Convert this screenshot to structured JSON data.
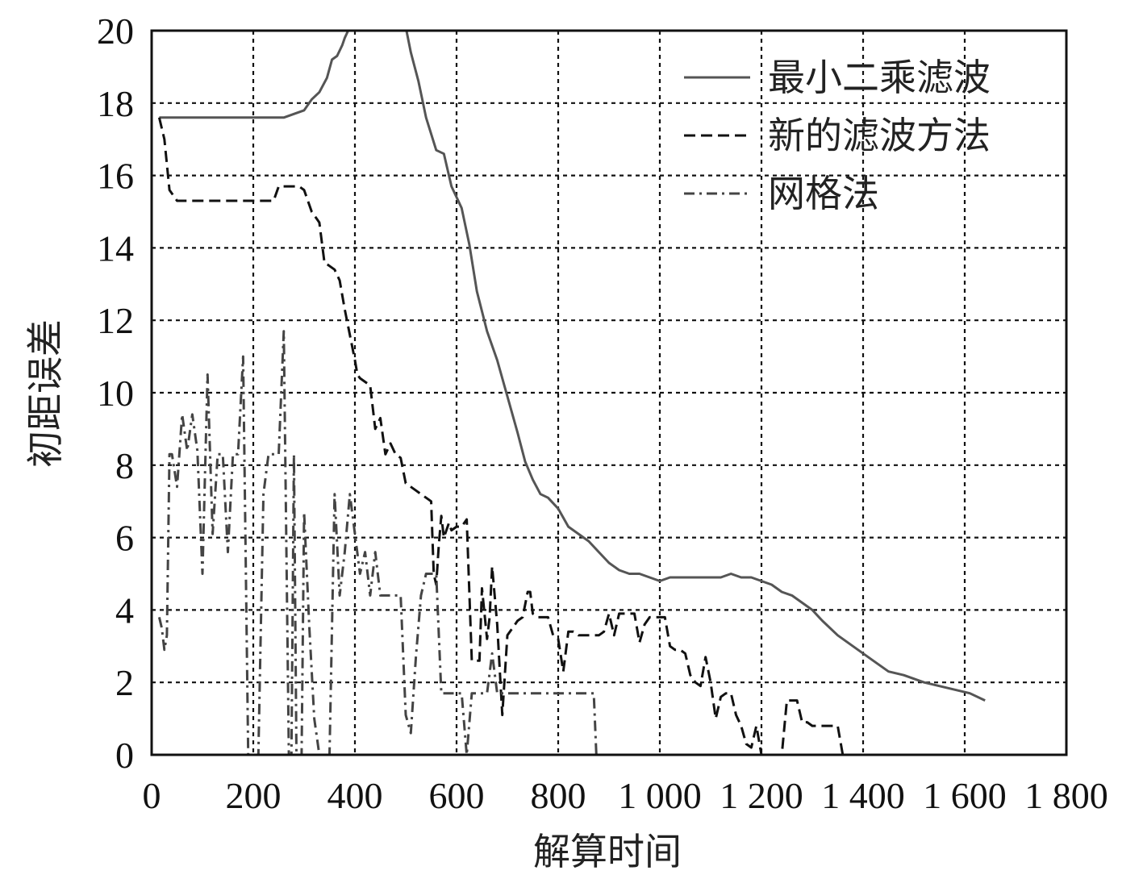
{
  "chart_data": {
    "type": "line",
    "xlabel": "解算时间",
    "ylabel": "初距误差",
    "x_tick_labels": [
      "0",
      "200",
      "400",
      "600",
      "800",
      "1 000",
      "1 200",
      "1 400",
      "1 600",
      "1 800"
    ],
    "x_ticks": [
      0,
      200,
      400,
      600,
      800,
      1000,
      1200,
      1400,
      1600,
      1800
    ],
    "y_ticks": [
      0,
      2,
      4,
      6,
      8,
      10,
      12,
      14,
      16,
      18,
      20
    ],
    "xlim": [
      0,
      1800
    ],
    "ylim": [
      0,
      20
    ],
    "grid": true,
    "legend_position": "top-right",
    "series": [
      {
        "name": "最小二乘滤波",
        "style": "solid",
        "color": "#555555",
        "x": [
          15,
          40,
          80,
          120,
          160,
          200,
          220,
          245,
          260,
          280,
          300,
          315,
          330,
          345,
          355,
          365,
          375,
          380,
          390,
          500,
          510,
          525,
          540,
          560,
          575,
          590,
          600,
          610,
          625,
          640,
          660,
          680,
          700,
          720,
          735,
          750,
          765,
          780,
          800,
          820,
          840,
          860,
          880,
          900,
          920,
          940,
          960,
          980,
          1000,
          1020,
          1050,
          1080,
          1100,
          1120,
          1140,
          1160,
          1180,
          1200,
          1220,
          1240,
          1260,
          1280,
          1300,
          1320,
          1350,
          1380,
          1400,
          1420,
          1450,
          1480,
          1500,
          1520,
          1550,
          1580,
          1610,
          1640
        ],
        "y": [
          17.6,
          17.6,
          17.6,
          17.6,
          17.6,
          17.6,
          17.6,
          17.6,
          17.6,
          17.7,
          17.8,
          18.1,
          18.3,
          18.7,
          19.2,
          19.3,
          19.6,
          19.8,
          20.1,
          20.1,
          19.4,
          18.6,
          17.6,
          16.7,
          16.6,
          15.7,
          15.4,
          15.1,
          14.1,
          12.8,
          11.7,
          10.9,
          9.9,
          8.9,
          8.1,
          7.6,
          7.2,
          7.1,
          6.8,
          6.3,
          6.1,
          5.9,
          5.6,
          5.3,
          5.1,
          5.0,
          5.0,
          4.9,
          4.8,
          4.9,
          4.9,
          4.9,
          4.9,
          4.9,
          5.0,
          4.9,
          4.9,
          4.8,
          4.7,
          4.5,
          4.4,
          4.2,
          4.0,
          3.7,
          3.3,
          3.0,
          2.8,
          2.6,
          2.3,
          2.2,
          2.1,
          2.0,
          1.9,
          1.8,
          1.7,
          1.5
        ]
      },
      {
        "name": "新的滤波方法",
        "style": "dashed",
        "color": "#111111",
        "x": [
          15,
          25,
          35,
          50,
          80,
          120,
          160,
          200,
          230,
          240,
          250,
          270,
          290,
          300,
          315,
          325,
          330,
          340,
          350,
          360,
          370,
          380,
          390,
          400,
          405,
          410,
          420,
          430,
          440,
          450,
          460,
          470,
          480,
          490,
          500,
          510,
          520,
          530,
          540,
          550,
          555,
          560,
          565,
          570,
          575,
          580,
          585,
          590,
          600,
          610,
          620,
          630,
          640,
          645,
          650,
          660,
          665,
          670,
          680,
          690,
          700,
          710,
          715,
          720,
          730,
          740,
          745,
          750,
          760,
          770,
          780,
          790,
          800,
          810,
          820,
          830,
          840,
          860,
          870,
          880,
          890,
          900,
          910,
          920,
          930,
          940,
          950,
          960,
          970,
          980,
          990,
          1000,
          1010,
          1020,
          1030,
          1040,
          1050,
          1060,
          1070,
          1080,
          1090,
          1100,
          1110,
          1120,
          1130,
          1140,
          1150,
          1160,
          1170,
          1180,
          1190,
          1200,
          1210,
          1220,
          1230,
          1240,
          1250,
          1260,
          1270,
          1280,
          1290,
          1300,
          1310,
          1320,
          1330,
          1340,
          1350,
          1360,
          1370,
          1380,
          1400,
          1420,
          1440,
          1450
        ],
        "y": [
          17.6,
          17.0,
          15.6,
          15.3,
          15.3,
          15.3,
          15.3,
          15.3,
          15.3,
          15.3,
          15.7,
          15.7,
          15.7,
          15.6,
          15.0,
          14.8,
          14.7,
          13.6,
          13.5,
          13.4,
          13.1,
          12.3,
          11.6,
          10.9,
          10.5,
          10.4,
          10.3,
          10.2,
          9.0,
          9.3,
          8.3,
          8.6,
          8.3,
          8.2,
          7.5,
          7.4,
          7.3,
          7.2,
          7.1,
          7.0,
          5.0,
          4.7,
          5.8,
          6.6,
          6.0,
          6.2,
          6.4,
          6.2,
          6.3,
          6.3,
          6.5,
          2.6,
          2.6,
          2.6,
          4.6,
          3.2,
          3.8,
          5.2,
          3.6,
          1.1,
          3.3,
          3.5,
          3.6,
          3.7,
          3.8,
          4.5,
          4.5,
          3.9,
          3.8,
          3.8,
          3.8,
          3.3,
          3.2,
          2.3,
          3.4,
          3.4,
          3.3,
          3.3,
          3.3,
          3.3,
          3.4,
          3.9,
          3.3,
          3.9,
          3.9,
          3.9,
          3.9,
          3.1,
          3.6,
          3.8,
          3.8,
          3.8,
          3.8,
          3.0,
          2.9,
          2.9,
          2.8,
          2.2,
          2.0,
          1.9,
          2.7,
          2.0,
          1.0,
          1.6,
          1.7,
          1.7,
          1.1,
          0.8,
          0.3,
          0.2,
          0.8,
          0.0,
          0.0,
          0.0,
          0.0,
          0.0,
          1.5,
          1.5,
          1.5,
          0.9,
          0.9,
          0.8,
          0.8,
          0.8,
          0.8,
          0.8,
          0.8,
          0.0,
          0.0,
          0.0,
          0.0,
          0.0,
          0.0,
          0.0
        ]
      },
      {
        "name": "网格法",
        "style": "dashdot",
        "color": "#444444",
        "x": [
          15,
          20,
          25,
          30,
          35,
          40,
          50,
          60,
          70,
          80,
          90,
          100,
          110,
          120,
          130,
          140,
          150,
          160,
          170,
          180,
          190,
          200,
          210,
          220,
          230,
          240,
          250,
          260,
          270,
          275,
          280,
          285,
          290,
          295,
          300,
          310,
          320,
          330,
          340,
          350,
          360,
          370,
          380,
          390,
          400,
          410,
          420,
          430,
          440,
          450,
          460,
          470,
          480,
          490,
          500,
          510,
          520,
          530,
          540,
          550,
          560,
          570,
          580,
          590,
          600,
          610,
          620,
          630,
          640,
          650,
          660,
          670,
          680,
          690,
          700,
          710,
          720,
          730,
          740,
          750,
          760,
          770,
          780,
          790,
          800,
          810,
          820,
          830,
          840,
          850,
          860,
          870,
          875
        ],
        "y": [
          3.8,
          3.5,
          2.9,
          3.3,
          8.3,
          8.3,
          7.4,
          9.4,
          8.4,
          9.4,
          8.4,
          5.0,
          10.5,
          6.1,
          8.3,
          8.3,
          5.6,
          8.3,
          8.3,
          11.0,
          0.0,
          0.0,
          0.0,
          7.2,
          8.3,
          8.3,
          8.3,
          11.7,
          0.0,
          0.0,
          8.3,
          0.0,
          0.0,
          0.0,
          6.7,
          3.6,
          1.0,
          0.0,
          0.0,
          0.0,
          7.2,
          4.4,
          5.6,
          7.2,
          6.1,
          5.0,
          5.6,
          4.4,
          5.6,
          4.4,
          4.4,
          4.4,
          4.4,
          4.4,
          1.1,
          0.6,
          2.7,
          4.4,
          5.0,
          5.0,
          5.0,
          1.7,
          1.7,
          1.7,
          1.7,
          1.7,
          0.0,
          1.7,
          1.7,
          1.7,
          1.7,
          2.8,
          1.7,
          1.7,
          1.7,
          1.7,
          1.7,
          1.7,
          1.7,
          1.7,
          1.7,
          1.7,
          1.7,
          1.7,
          1.7,
          1.7,
          1.7,
          1.7,
          1.7,
          1.7,
          1.7,
          1.7,
          0.0
        ]
      }
    ]
  }
}
